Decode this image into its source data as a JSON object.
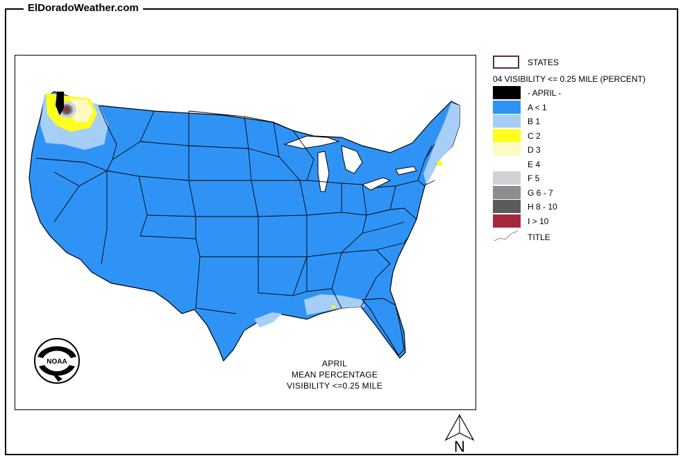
{
  "site_title": "ElDoradoWeather.com",
  "map_title": {
    "line1": "APRIL",
    "line2": "MEAN PERCENTAGE",
    "line3": "VISIBILITY <=0.25 MILE"
  },
  "legend": {
    "states_label": "STATES",
    "heading": "04 VISIBILITY <= 0.25 MILE (PERCENT)",
    "items": [
      {
        "label": "- APRIL -",
        "color": "#000000"
      },
      {
        "label": "A < 1",
        "color": "#2f93f5"
      },
      {
        "label": "B 1",
        "color": "#a6cff7"
      },
      {
        "label": "C 2",
        "color": "#ffff1e"
      },
      {
        "label": "D 3",
        "color": "#fff9c4"
      },
      {
        "label": "E 4",
        "color": "#ffffff"
      },
      {
        "label": "F 5",
        "color": "#cfd2d6"
      },
      {
        "label": "G 6 - 7",
        "color": "#8e8e8e"
      },
      {
        "label": "H 8 - 10",
        "color": "#5b5b5b"
      },
      {
        "label": "I > 10",
        "color": "#a5293e"
      }
    ],
    "title_label": "TITLE"
  },
  "logo_text": "NOAA",
  "north_label": "N"
}
